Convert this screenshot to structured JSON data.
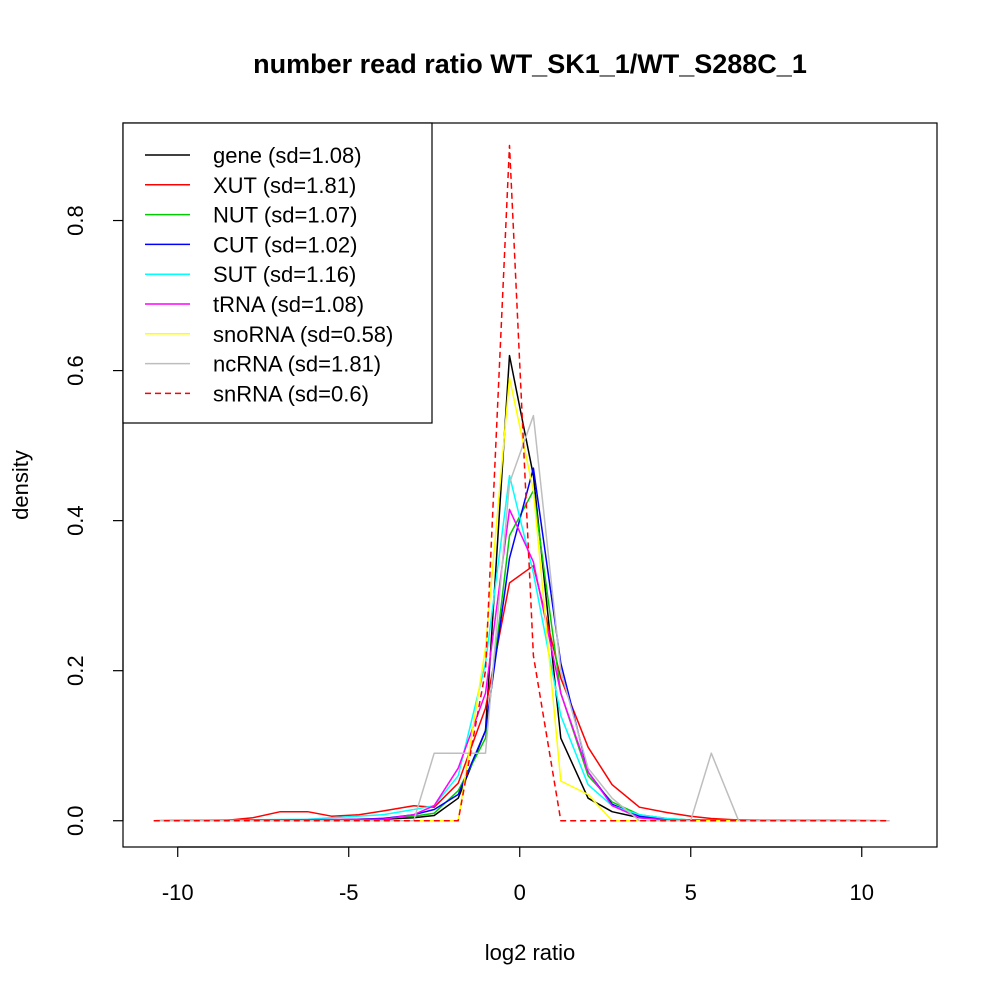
{
  "chart_data": {
    "type": "line",
    "title": "number read ratio WT_SK1_1/WT_S288C_1",
    "xlabel": "log2 ratio",
    "ylabel": "density",
    "xlim": [
      -11.6,
      12.2
    ],
    "ylim": [
      -0.035,
      0.93
    ],
    "x_ticks": [
      -10,
      -5,
      0,
      5,
      10
    ],
    "x_tick_labels": [
      "-10",
      "-5",
      "0",
      "5",
      "10"
    ],
    "y_ticks": [
      0.0,
      0.2,
      0.4,
      0.6,
      0.8
    ],
    "y_tick_labels": [
      "0.0",
      "0.2",
      "0.4",
      "0.6",
      "0.8"
    ],
    "grid": false,
    "legend_position": "top-left",
    "series": [
      {
        "name": "gene (sd=1.08)",
        "color": "#000000",
        "dash": false,
        "x": [
          -10.7,
          -6.2,
          -4.0,
          -3.1,
          -2.5,
          -1.8,
          -1.0,
          -0.3,
          0.4,
          1.2,
          2.0,
          2.7,
          3.5,
          4.3,
          5.0,
          6.2,
          10.8
        ],
        "y": [
          0.0,
          0.001,
          0.002,
          0.004,
          0.007,
          0.03,
          0.12,
          0.62,
          0.46,
          0.11,
          0.03,
          0.012,
          0.004,
          0.002,
          0.001,
          0.0,
          0.0
        ]
      },
      {
        "name": "XUT (sd=1.81)",
        "color": "#ff0000",
        "dash": false,
        "x": [
          -10.7,
          -8.7,
          -7.8,
          -7.0,
          -6.2,
          -5.5,
          -4.7,
          -4.0,
          -3.1,
          -2.5,
          -1.8,
          -1.0,
          -0.3,
          0.4,
          1.2,
          2.0,
          2.7,
          3.5,
          4.3,
          5.0,
          5.6,
          6.4,
          7.2,
          10.8
        ],
        "y": [
          0.0,
          0.0,
          0.004,
          0.012,
          0.012,
          0.006,
          0.008,
          0.013,
          0.02,
          0.018,
          0.05,
          0.15,
          0.317,
          0.34,
          0.19,
          0.098,
          0.048,
          0.018,
          0.011,
          0.006,
          0.003,
          0.001,
          0.0,
          0.0
        ]
      },
      {
        "name": "NUT (sd=1.07)",
        "color": "#00cd00",
        "dash": false,
        "x": [
          -10.7,
          -5.5,
          -4.0,
          -3.1,
          -2.5,
          -1.8,
          -1.0,
          -0.3,
          0.4,
          1.2,
          2.0,
          2.7,
          3.5,
          4.3,
          5.0,
          10.8
        ],
        "y": [
          0.0,
          0.001,
          0.003,
          0.006,
          0.01,
          0.04,
          0.11,
          0.38,
          0.44,
          0.17,
          0.06,
          0.025,
          0.008,
          0.003,
          0.001,
          0.0
        ]
      },
      {
        "name": "CUT (sd=1.02)",
        "color": "#0000ff",
        "dash": false,
        "x": [
          -10.7,
          -5.5,
          -4.0,
          -3.1,
          -2.5,
          -1.8,
          -1.0,
          -0.3,
          0.4,
          1.2,
          2.0,
          2.7,
          3.5,
          4.3,
          5.0,
          10.8
        ],
        "y": [
          0.0,
          0.001,
          0.003,
          0.008,
          0.015,
          0.035,
          0.12,
          0.35,
          0.47,
          0.21,
          0.065,
          0.022,
          0.006,
          0.002,
          0.001,
          0.0
        ]
      },
      {
        "name": "SUT (sd=1.16)",
        "color": "#00ffff",
        "dash": false,
        "x": [
          -10.7,
          -6.2,
          -5.5,
          -4.0,
          -3.1,
          -2.5,
          -1.8,
          -1.0,
          -0.3,
          0.4,
          1.2,
          2.0,
          2.7,
          3.5,
          4.3,
          5.0,
          10.8
        ],
        "y": [
          0.0,
          0.002,
          0.004,
          0.008,
          0.015,
          0.02,
          0.06,
          0.21,
          0.46,
          0.33,
          0.14,
          0.048,
          0.02,
          0.008,
          0.003,
          0.001,
          0.0
        ]
      },
      {
        "name": "tRNA (sd=1.08)",
        "color": "#ff00ff",
        "dash": false,
        "x": [
          -10.7,
          -4.0,
          -3.1,
          -2.5,
          -1.8,
          -1.0,
          -0.3,
          0.4,
          1.2,
          2.0,
          2.7,
          3.5,
          4.3,
          10.8
        ],
        "y": [
          0.0,
          0.002,
          0.008,
          0.02,
          0.07,
          0.17,
          0.415,
          0.345,
          0.17,
          0.065,
          0.02,
          0.004,
          0.001,
          0.0
        ]
      },
      {
        "name": "snoRNA (sd=0.58)",
        "color": "#ffff00",
        "dash": false,
        "x": [
          -10.7,
          -2.5,
          -1.8,
          -1.0,
          -0.3,
          0.4,
          1.2,
          2.0,
          2.7,
          3.5,
          10.8
        ],
        "y": [
          0.0,
          0.0,
          0.0,
          0.23,
          0.59,
          0.44,
          0.053,
          0.035,
          0.0,
          0.0,
          0.0
        ]
      },
      {
        "name": "ncRNA (sd=1.81)",
        "color": "#bebebe",
        "dash": false,
        "x": [
          -10.7,
          -3.1,
          -2.5,
          -1.8,
          -1.0,
          -0.3,
          0.4,
          1.2,
          2.0,
          2.7,
          3.5,
          5.0,
          5.6,
          6.4,
          10.8
        ],
        "y": [
          0.0,
          0.0,
          0.09,
          0.09,
          0.09,
          0.45,
          0.54,
          0.2,
          0.07,
          0.03,
          0.0,
          0.0,
          0.09,
          0.0,
          0.0
        ]
      },
      {
        "name": "snRNA (sd=0.6)",
        "color": "#ff0000",
        "dash": true,
        "x": [
          -10.7,
          -1.8,
          -1.0,
          -0.3,
          0.4,
          1.2,
          10.8
        ],
        "y": [
          0.0,
          0.0,
          0.2,
          0.9,
          0.22,
          0.0,
          0.0
        ]
      }
    ]
  }
}
